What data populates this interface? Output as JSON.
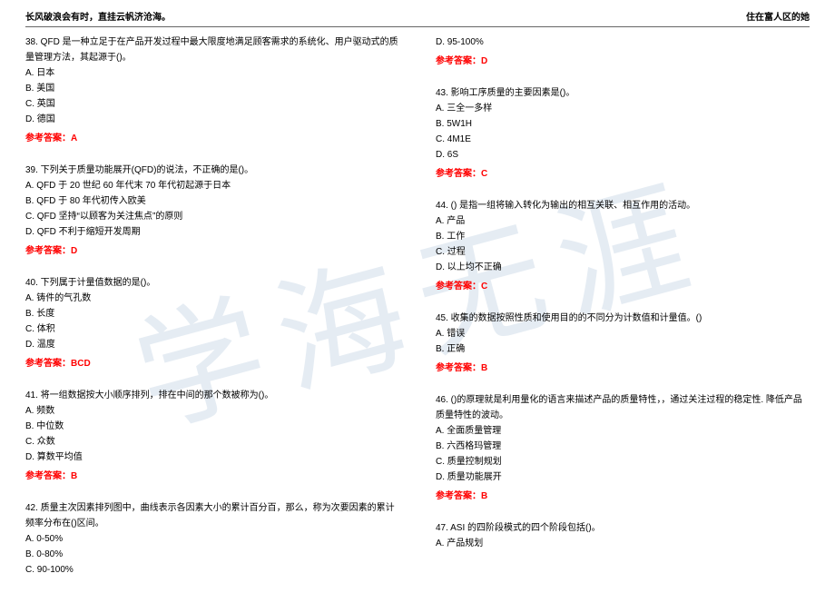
{
  "header": {
    "left": "长风破浪会有时，直挂云帆济沧海。",
    "right": "住在富人区的她"
  },
  "watermark": "学海无涯",
  "colors": {
    "text": "#000000",
    "answer": "#ff0000",
    "watermark": "rgba(180, 200, 220, 0.35)",
    "divider": "#666666",
    "background": "#ffffff"
  },
  "left_questions": [
    {
      "stem": "38. QFD 是一种立足于在产品开发过程中最大限度地满足顾客需求的系统化、用户驱动式的质量管理方法，其起源于()。",
      "options": [
        "A. 日本",
        "B. 美国",
        "C. 英国",
        "D. 德国"
      ],
      "answer": "参考答案：A"
    },
    {
      "stem": "39. 下列关于质量功能展开(QFD)的说法，不正确的是()。",
      "options": [
        "A. QFD 于 20 世纪 60 年代末 70 年代初起源于日本",
        "B. QFD 于 80 年代初传入欧美",
        "C. QFD 坚持“以顾客为关注焦点”的原则",
        "D. QFD 不利于缩短开发周期"
      ],
      "answer": "参考答案：D"
    },
    {
      "stem": "40. 下列属于计量值数据的是()。",
      "options": [
        "A. 铸件的气孔数",
        "B. 长度",
        "C. 体积",
        "D. 温度"
      ],
      "answer": "参考答案：BCD"
    },
    {
      "stem": "41. 将一组数据按大小顺序排列，排在中间的那个数被称为()。",
      "options": [
        "A. 频数",
        "B. 中位数",
        "C. 众数",
        "D. 算数平均值"
      ],
      "answer": "参考答案：B"
    },
    {
      "stem": "42. 质量主次因素排列图中，曲线表示各因素大小的累计百分百，那么，称为次要因素的累计频率分布在()区间。",
      "options": [
        "A. 0-50%",
        "B. 0-80%",
        "C. 90-100%"
      ],
      "answer": ""
    }
  ],
  "right_questions": [
    {
      "stem": "",
      "options": [
        "D. 95-100%"
      ],
      "answer": "参考答案：D"
    },
    {
      "stem": "43. 影响工序质量的主要因素是()。",
      "options": [
        "A. 三全一多样",
        "B. 5W1H",
        "C. 4M1E",
        "D. 6S"
      ],
      "answer": "参考答案：C"
    },
    {
      "stem": "44. () 是指一组将输入转化为输出的相互关联、相互作用的活动。",
      "options": [
        "A. 产品",
        "B. 工作",
        "C. 过程",
        "D. 以上均不正确"
      ],
      "answer": "参考答案：C"
    },
    {
      "stem": "45. 收集的数据按照性质和使用目的的不同分为计数值和计量值。()",
      "options": [
        "A. 错误",
        "B. 正确"
      ],
      "answer": "参考答案：B"
    },
    {
      "stem": "46. ()的原理就是利用量化的语言来描述产品的质量特性，，通过关注过程的稳定性. 降低产品质量特性的波动。",
      "options": [
        "A. 全面质量管理",
        "B. 六西格玛管理",
        "C. 质量控制规划",
        "D. 质量功能展开"
      ],
      "answer": "参考答案：B"
    },
    {
      "stem": "47. ASI 的四阶段模式的四个阶段包括()。",
      "options": [
        "A. 产品规划"
      ],
      "answer": ""
    }
  ]
}
